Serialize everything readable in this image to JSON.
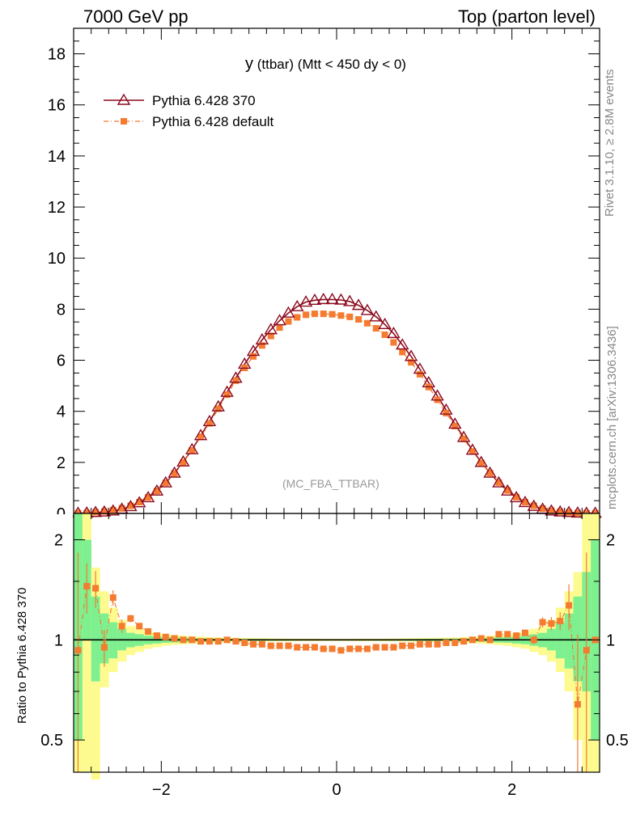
{
  "header": {
    "left": "7000 GeV pp",
    "right": "Top (parton level)"
  },
  "side_labels": {
    "rivet": "Rivet 3.1.10, ≥ 2.8M events",
    "mcplots": "mcplots.cern.ch [arXiv:1306.3436]"
  },
  "chart_data": [
    {
      "type": "line",
      "panel": "main",
      "title": "y (ttbar) (Mtt < 450 dy < 0)",
      "title_main": "y",
      "title_rest": " (ttbar) (Mtt < 450 dy < 0)",
      "watermark": "(MC_FBA_TTBAR)",
      "xlim": [
        -3.0,
        3.0
      ],
      "ylim": [
        0,
        19
      ],
      "yticks": [
        0,
        2,
        4,
        6,
        8,
        10,
        12,
        14,
        16,
        18
      ],
      "ytick_labels": [
        "0",
        "2",
        "4",
        "6",
        "8",
        "10",
        "12",
        "14",
        "16",
        "18"
      ],
      "x": [
        -2.95,
        -2.85,
        -2.75,
        -2.65,
        -2.55,
        -2.45,
        -2.35,
        -2.25,
        -2.15,
        -2.05,
        -1.95,
        -1.85,
        -1.75,
        -1.65,
        -1.55,
        -1.45,
        -1.35,
        -1.25,
        -1.15,
        -1.05,
        -0.95,
        -0.85,
        -0.75,
        -0.65,
        -0.55,
        -0.45,
        -0.35,
        -0.25,
        -0.15,
        -0.05,
        0.05,
        0.15,
        0.25,
        0.35,
        0.45,
        0.55,
        0.65,
        0.75,
        0.85,
        0.95,
        1.05,
        1.15,
        1.25,
        1.35,
        1.45,
        1.55,
        1.65,
        1.75,
        1.85,
        1.95,
        2.05,
        2.15,
        2.25,
        2.35,
        2.45,
        2.55,
        2.65,
        2.75,
        2.85,
        2.95
      ],
      "series": [
        {
          "name": "Pythia 6.428 370",
          "color": "#8b0a1e",
          "marker": "open-triangle",
          "values": [
            0.01,
            0.02,
            0.04,
            0.06,
            0.1,
            0.17,
            0.27,
            0.42,
            0.62,
            0.88,
            1.2,
            1.58,
            2.02,
            2.5,
            3.05,
            3.6,
            4.18,
            4.75,
            5.3,
            5.85,
            6.35,
            6.8,
            7.2,
            7.55,
            7.85,
            8.1,
            8.28,
            8.35,
            8.38,
            8.38,
            8.36,
            8.3,
            8.15,
            7.95,
            7.7,
            7.4,
            7.05,
            6.6,
            6.15,
            5.65,
            5.12,
            4.6,
            4.05,
            3.5,
            2.98,
            2.48,
            2.0,
            1.58,
            1.2,
            0.88,
            0.62,
            0.43,
            0.28,
            0.17,
            0.1,
            0.06,
            0.04,
            0.02,
            0.01,
            0.01
          ]
        },
        {
          "name": "Pythia 6.428 default",
          "color": "#f47b30",
          "marker": "filled-square",
          "values": [
            0.01,
            0.02,
            0.05,
            0.08,
            0.13,
            0.2,
            0.3,
            0.44,
            0.63,
            0.88,
            1.2,
            1.57,
            2.0,
            2.47,
            3.0,
            3.53,
            4.1,
            4.65,
            5.2,
            5.7,
            6.15,
            6.58,
            6.95,
            7.28,
            7.52,
            7.68,
            7.78,
            7.82,
            7.82,
            7.8,
            7.75,
            7.7,
            7.6,
            7.45,
            7.25,
            7.0,
            6.7,
            6.32,
            5.92,
            5.45,
            4.95,
            4.45,
            3.93,
            3.42,
            2.92,
            2.43,
            1.98,
            1.58,
            1.21,
            0.9,
            0.64,
            0.44,
            0.3,
            0.19,
            0.11,
            0.07,
            0.04,
            0.02,
            0.01,
            0.01
          ]
        }
      ]
    },
    {
      "type": "line",
      "panel": "ratio",
      "ylabel": "Ratio to Pythia 6.428 370",
      "xlim": [
        -3.0,
        3.0
      ],
      "ylim_log": [
        0.4,
        2.4
      ],
      "xticks": [
        -2,
        0,
        2
      ],
      "xtick_labels": [
        "−2",
        "0",
        "2"
      ],
      "yticks": [
        0.5,
        1,
        2
      ],
      "ytick_labels": [
        "0.5",
        "1",
        "2"
      ],
      "reference_line": 1,
      "band_colors": {
        "inner": "#7ef08f",
        "outer": "#fdfb8f"
      },
      "band_x_edges": [
        -3.0,
        -2.9,
        -2.8,
        -2.7,
        -2.6,
        -2.5,
        -2.4,
        -2.3,
        -2.2,
        -2.1,
        -2.0,
        -1.9,
        -1.8,
        -1.7,
        -1.6,
        -1.5,
        -1.4,
        -1.3,
        -1.2,
        -1.1,
        -1.0,
        -0.9,
        -0.8,
        -0.7,
        -0.6,
        -0.5,
        -0.4,
        -0.3,
        -0.2,
        -0.1,
        0.0,
        0.1,
        0.2,
        0.3,
        0.4,
        0.5,
        0.6,
        0.7,
        0.8,
        0.9,
        1.0,
        1.1,
        1.2,
        1.3,
        1.4,
        1.5,
        1.6,
        1.7,
        1.8,
        1.9,
        2.0,
        2.1,
        2.2,
        2.3,
        2.4,
        2.5,
        2.6,
        2.7,
        2.8,
        2.9,
        3.0
      ],
      "band_inner": [
        0.5,
        1.0,
        0.75,
        0.85,
        0.88,
        0.93,
        0.95,
        0.96,
        0.97,
        0.975,
        0.98,
        0.982,
        0.985,
        0.987,
        0.988,
        0.99,
        0.991,
        0.992,
        0.993,
        0.993,
        0.994,
        0.994,
        0.995,
        0.995,
        0.995,
        0.995,
        0.996,
        0.996,
        0.996,
        0.996,
        0.996,
        0.996,
        0.996,
        0.996,
        0.995,
        0.995,
        0.995,
        0.995,
        0.994,
        0.994,
        0.993,
        0.993,
        0.992,
        0.991,
        0.99,
        0.988,
        0.987,
        0.985,
        0.982,
        0.98,
        0.975,
        0.97,
        0.96,
        0.95,
        0.93,
        0.88,
        0.82,
        0.75,
        0.7,
        0.5
      ],
      "band_inner_hi": [
        2.4,
        2.0,
        1.35,
        1.2,
        1.13,
        1.08,
        1.05,
        1.04,
        1.03,
        1.025,
        1.02,
        1.018,
        1.015,
        1.013,
        1.012,
        1.01,
        1.009,
        1.008,
        1.007,
        1.007,
        1.006,
        1.006,
        1.005,
        1.005,
        1.005,
        1.005,
        1.004,
        1.004,
        1.004,
        1.004,
        1.004,
        1.004,
        1.004,
        1.004,
        1.005,
        1.005,
        1.005,
        1.005,
        1.006,
        1.006,
        1.007,
        1.007,
        1.008,
        1.009,
        1.01,
        1.012,
        1.013,
        1.015,
        1.018,
        1.02,
        1.025,
        1.03,
        1.04,
        1.05,
        1.08,
        1.13,
        1.2,
        1.35,
        1.6,
        2.0
      ],
      "band_outer_lo": [
        0.4,
        0.4,
        0.38,
        0.72,
        0.8,
        0.86,
        0.9,
        0.92,
        0.94,
        0.95,
        0.96,
        0.965,
        0.97,
        0.974,
        0.977,
        0.98,
        0.982,
        0.984,
        0.985,
        0.986,
        0.987,
        0.988,
        0.989,
        0.99,
        0.99,
        0.991,
        0.991,
        0.991,
        0.992,
        0.992,
        0.992,
        0.992,
        0.991,
        0.991,
        0.991,
        0.99,
        0.99,
        0.989,
        0.988,
        0.987,
        0.986,
        0.985,
        0.984,
        0.982,
        0.98,
        0.977,
        0.974,
        0.97,
        0.965,
        0.96,
        0.95,
        0.94,
        0.92,
        0.9,
        0.86,
        0.8,
        0.7,
        0.5,
        0.4,
        0.4
      ],
      "band_outer_hi": [
        2.4,
        2.4,
        1.65,
        1.4,
        1.25,
        1.15,
        1.1,
        1.08,
        1.06,
        1.05,
        1.04,
        1.035,
        1.03,
        1.026,
        1.023,
        1.02,
        1.018,
        1.016,
        1.015,
        1.014,
        1.013,
        1.012,
        1.011,
        1.01,
        1.01,
        1.009,
        1.009,
        1.009,
        1.008,
        1.008,
        1.008,
        1.008,
        1.009,
        1.009,
        1.009,
        1.01,
        1.01,
        1.011,
        1.012,
        1.013,
        1.014,
        1.015,
        1.016,
        1.018,
        1.02,
        1.023,
        1.026,
        1.03,
        1.035,
        1.04,
        1.05,
        1.06,
        1.08,
        1.1,
        1.15,
        1.25,
        1.4,
        1.6,
        2.4,
        2.4
      ],
      "ratio_x": [
        -2.95,
        -2.85,
        -2.75,
        -2.65,
        -2.55,
        -2.45,
        -2.35,
        -2.25,
        -2.15,
        -2.05,
        -1.95,
        -1.85,
        -1.75,
        -1.65,
        -1.55,
        -1.45,
        -1.35,
        -1.25,
        -1.15,
        -1.05,
        -0.95,
        -0.85,
        -0.75,
        -0.65,
        -0.55,
        -0.45,
        -0.35,
        -0.25,
        -0.15,
        -0.05,
        0.05,
        0.15,
        0.25,
        0.35,
        0.45,
        0.55,
        0.65,
        0.75,
        0.85,
        0.95,
        1.05,
        1.15,
        1.25,
        1.35,
        1.45,
        1.55,
        1.65,
        1.75,
        1.85,
        1.95,
        2.05,
        2.15,
        2.25,
        2.35,
        2.45,
        2.55,
        2.65,
        2.75,
        2.85,
        2.95
      ],
      "ratio_values": [
        0.93,
        1.45,
        1.43,
        0.95,
        1.34,
        1.1,
        1.16,
        1.1,
        1.06,
        1.03,
        1.02,
        1.01,
        1.0,
        1.0,
        0.99,
        0.99,
        0.99,
        1.0,
        0.99,
        0.98,
        0.97,
        0.97,
        0.96,
        0.96,
        0.96,
        0.95,
        0.95,
        0.95,
        0.94,
        0.94,
        0.93,
        0.94,
        0.94,
        0.94,
        0.95,
        0.95,
        0.95,
        0.96,
        0.96,
        0.97,
        0.97,
        0.97,
        0.98,
        0.98,
        0.99,
        1.0,
        1.01,
        1.0,
        1.04,
        1.04,
        1.03,
        1.05,
        1.0,
        1.13,
        1.12,
        1.14,
        1.27,
        0.64,
        0.93,
        1.0
      ],
      "ratio_err": [
        0.9,
        0.25,
        0.18,
        0.12,
        0.07,
        0.05,
        0.03,
        0.02,
        0.015,
        0.01,
        0.01,
        0.01,
        0.01,
        0.005,
        0.005,
        0.005,
        0.005,
        0.005,
        0.005,
        0.005,
        0.005,
        0.005,
        0.005,
        0.005,
        0.005,
        0.005,
        0.005,
        0.005,
        0.005,
        0.005,
        0.005,
        0.005,
        0.005,
        0.005,
        0.005,
        0.005,
        0.005,
        0.005,
        0.005,
        0.005,
        0.005,
        0.005,
        0.005,
        0.005,
        0.005,
        0.005,
        0.01,
        0.01,
        0.01,
        0.01,
        0.015,
        0.02,
        0.03,
        0.04,
        0.05,
        0.07,
        0.2,
        0.4,
        0.9,
        0.0
      ]
    }
  ]
}
